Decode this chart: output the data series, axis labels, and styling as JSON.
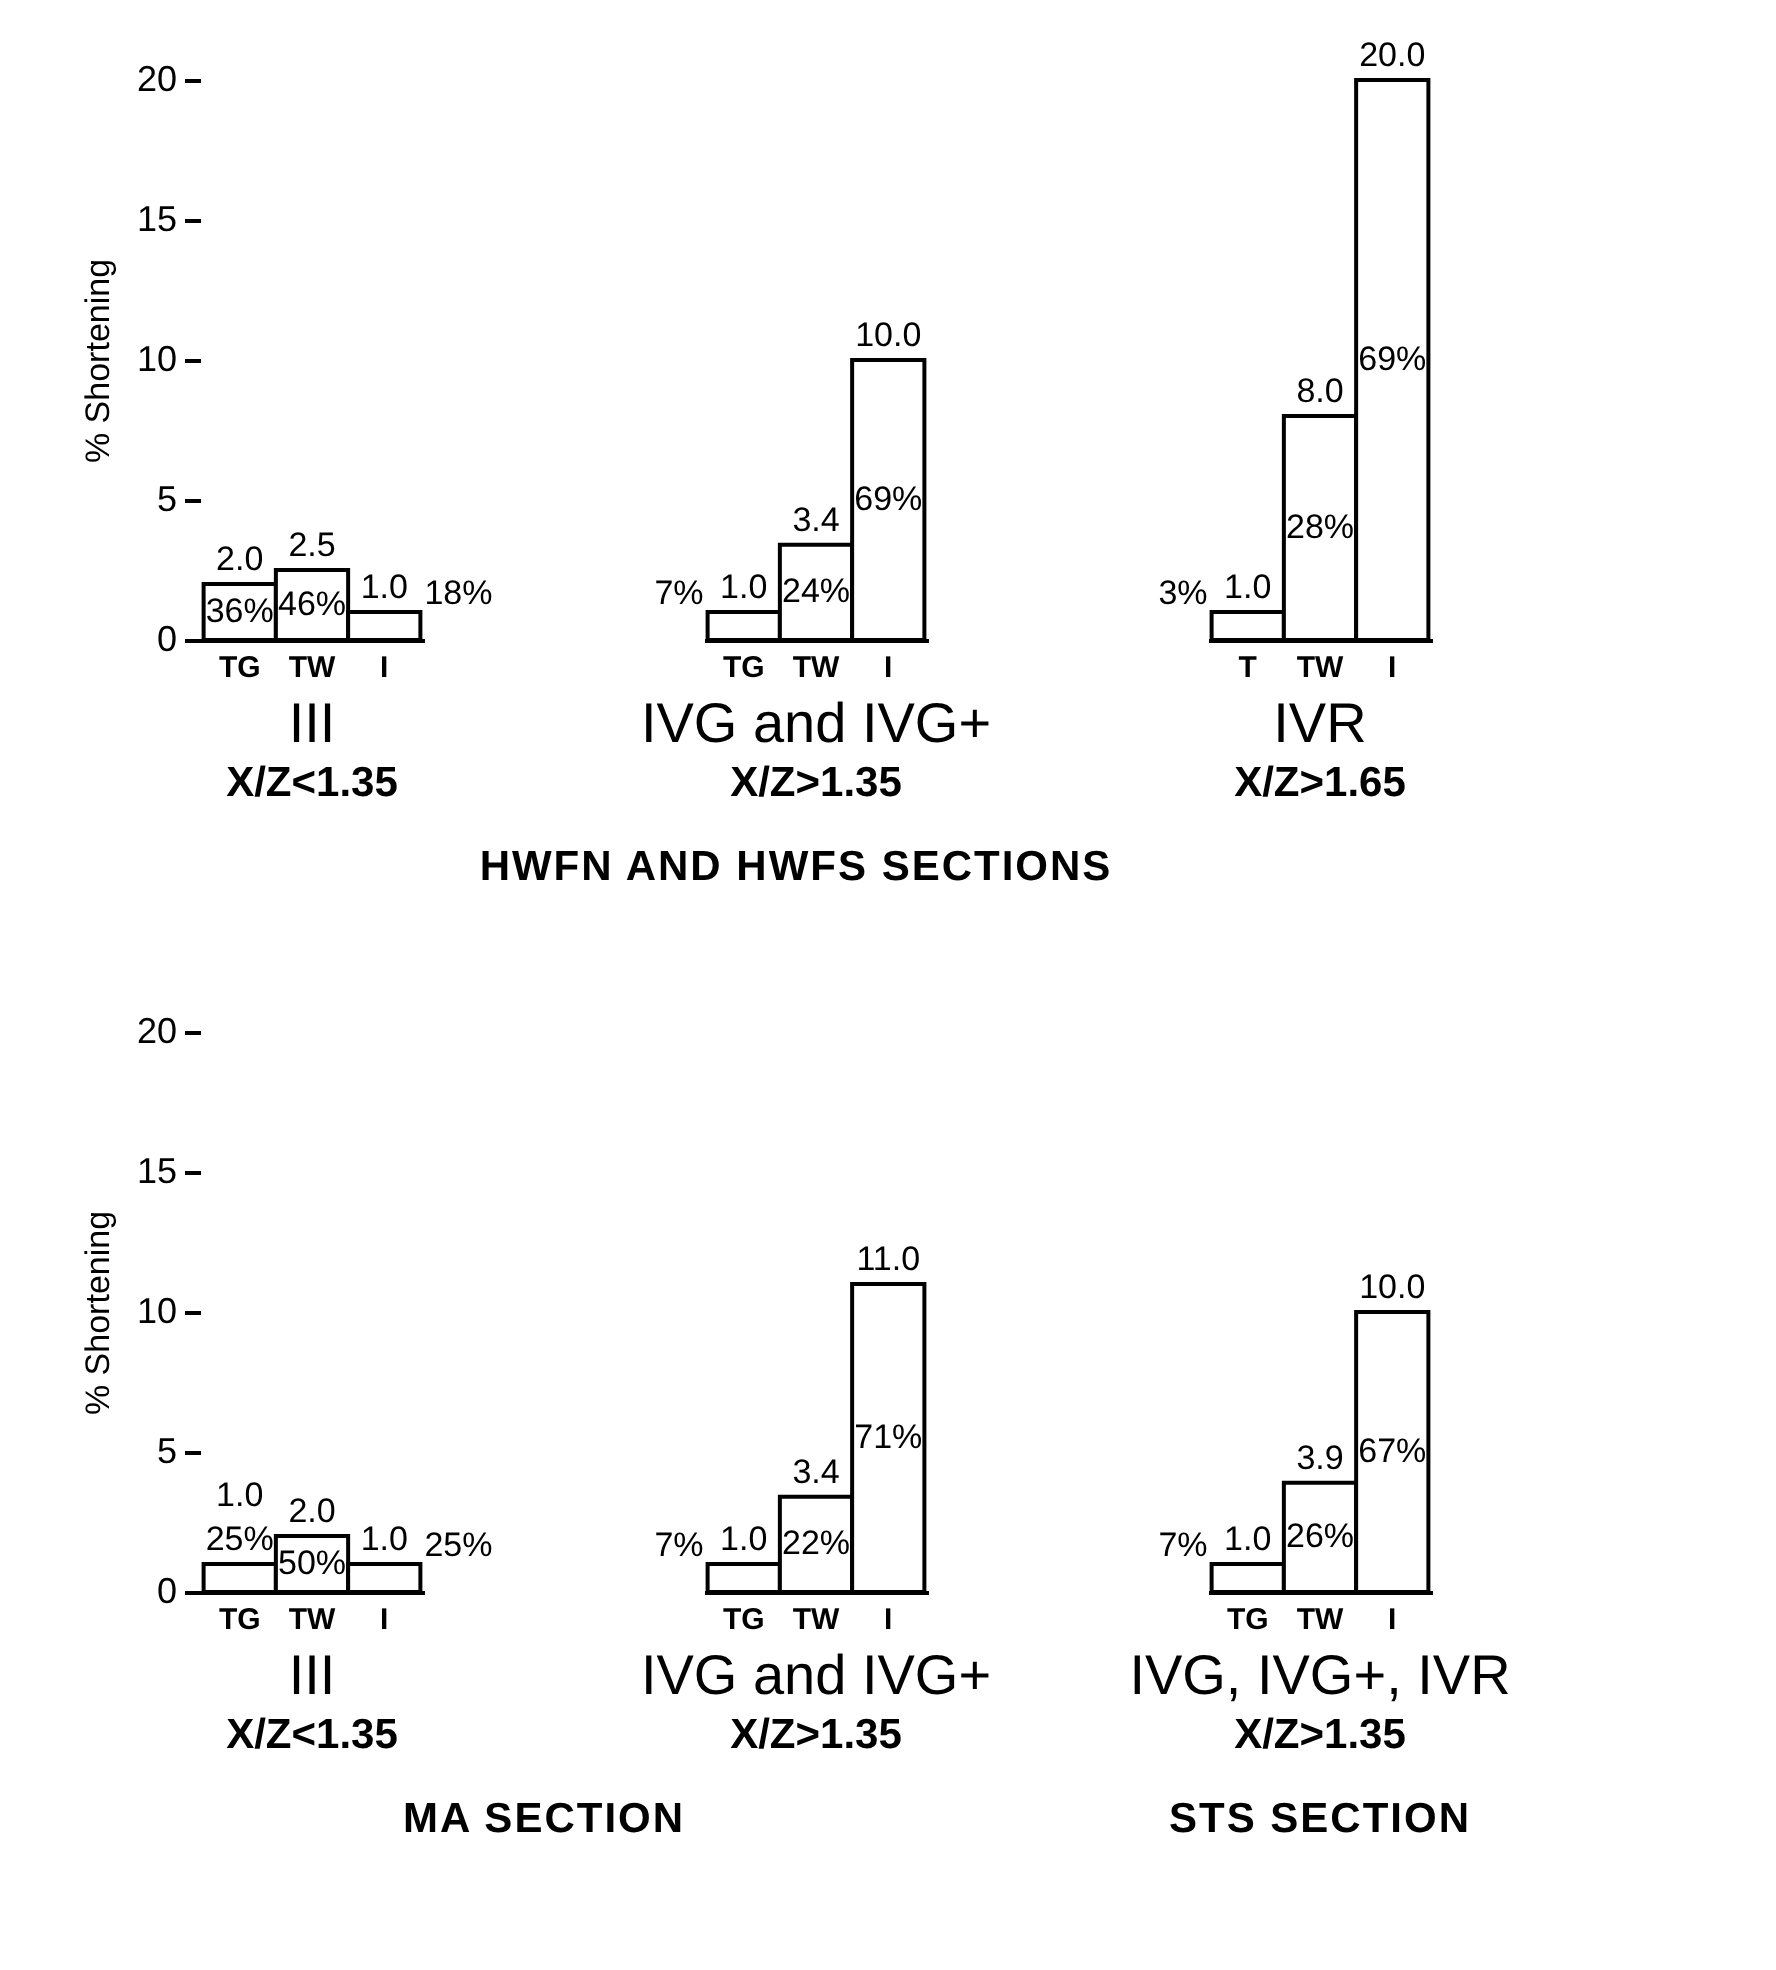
{
  "chart_data": [
    {
      "type": "bar",
      "title": "III",
      "subtitle": "X/Z<1.35",
      "ylabel": "% Shortening",
      "categories": [
        "TG",
        "TW",
        "I"
      ],
      "values": [
        2.0,
        2.5,
        1.0
      ],
      "color": "#ffffff",
      "value_labels": [
        "2.0",
        "2.5",
        "1.0"
      ],
      "ylim": [
        0,
        20
      ],
      "yticks": [
        0,
        5,
        10,
        15,
        20
      ],
      "annotations": [
        "36%",
        "46%",
        "18%"
      ]
    },
    {
      "type": "bar",
      "title": "IVG and IVG+",
      "subtitle": "X/Z>1.35",
      "categories": [
        "TG",
        "TW",
        "I"
      ],
      "values": [
        1.0,
        3.4,
        10.0
      ],
      "color": "#ffffff",
      "value_labels": [
        "1.0",
        "3.4",
        "10.0"
      ],
      "ylim": [
        0,
        20
      ],
      "tick_labels": "x",
      "annotations": [
        "7%",
        "24%",
        "69%"
      ]
    },
    {
      "type": "bar",
      "title": "IVR",
      "subtitle": "X/Z>1.65",
      "categories": [
        "T",
        "TW",
        "I"
      ],
      "values": [
        1.0,
        8.0,
        20.0
      ],
      "color": "#ffffff",
      "value_labels": [
        "1.0",
        "8.0",
        "20.0"
      ],
      "ylim": [
        0,
        20
      ],
      "tick_labels": "x",
      "annotations": [
        "3%",
        "28%",
        "69%",
        "HWFN AND HWFS SECTIONS"
      ]
    },
    {
      "type": "bar",
      "title": "III",
      "subtitle": "X/Z<1.35",
      "ylabel": "% Shortening",
      "categories": [
        "TG",
        "TW",
        "I"
      ],
      "values": [
        1.0,
        2.0,
        1.0
      ],
      "color": "#ffffff",
      "value_labels": [
        "1.0",
        "2.0",
        "1.0"
      ],
      "ylim": [
        0,
        20
      ],
      "yticks": [
        0,
        5,
        10,
        15,
        20
      ],
      "annotations": [
        "25%",
        "50%",
        "25%"
      ]
    },
    {
      "type": "bar",
      "title": "IVG and IVG+",
      "subtitle": "X/Z>1.35",
      "categories": [
        "TG",
        "TW",
        "I"
      ],
      "values": [
        1.0,
        3.4,
        11.0
      ],
      "color": "#ffffff",
      "value_labels": [
        "1.0",
        "3.4",
        "11.0"
      ],
      "ylim": [
        0,
        20
      ],
      "tick_labels": "x",
      "annotations": [
        "7%",
        "22%",
        "71%",
        "MA SECTION"
      ]
    },
    {
      "type": "bar",
      "title": "IVG, IVG+, IVR",
      "subtitle": "X/Z>1.35",
      "categories": [
        "TG",
        "TW",
        "I"
      ],
      "values": [
        1.0,
        3.9,
        10.0
      ],
      "color": "#ffffff",
      "value_labels": [
        "1.0",
        "3.9",
        "10.0"
      ],
      "ylim": [
        0,
        20
      ],
      "tick_labels": "x",
      "annotations": [
        "7%",
        "26%",
        "67%",
        "STS SECTION"
      ]
    }
  ]
}
